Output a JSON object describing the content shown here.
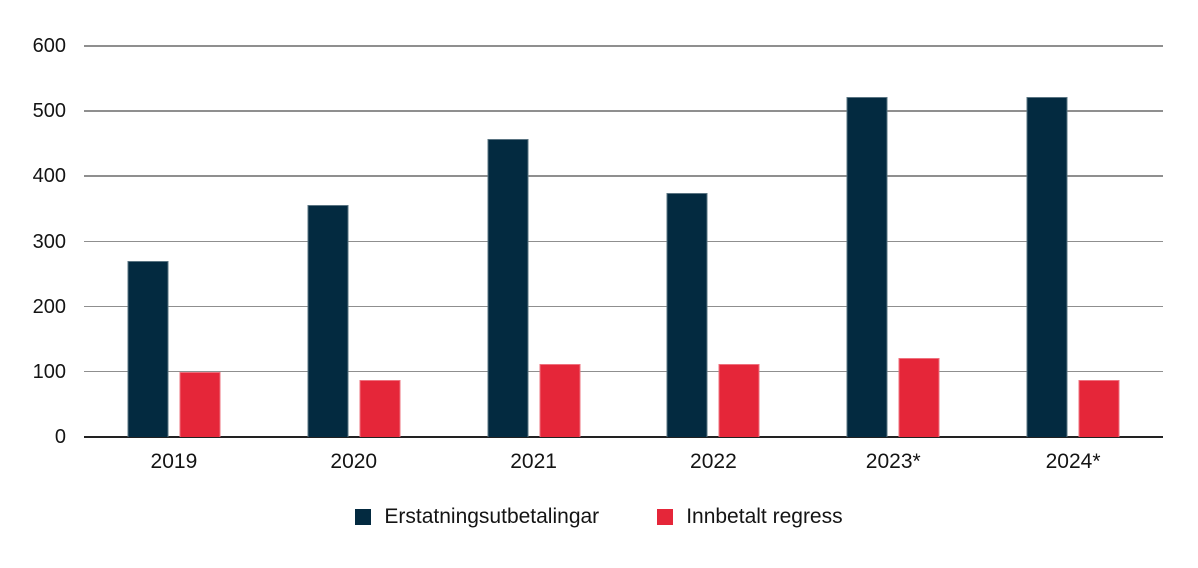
{
  "figure": {
    "background": "#ffffff",
    "text_color": "#141414",
    "gridline_color": "#8f8f8f",
    "axis_line_color": "#222222"
  },
  "chart_data": {
    "type": "bar",
    "title": "",
    "xlabel": "",
    "ylabel": "",
    "categories": [
      "2019",
      "2020",
      "2021",
      "2022",
      "2023*",
      "2024*"
    ],
    "series": [
      {
        "name": "Erstatningsutbetalingar",
        "color": "#032a40",
        "values": [
          270,
          356,
          458,
          375,
          522,
          522
        ]
      },
      {
        "name": "Innbetalt regress",
        "color": "#e52639",
        "values": [
          100,
          87,
          112,
          112,
          122,
          87
        ]
      }
    ],
    "ylim": [
      0,
      600
    ],
    "yticks": [
      0,
      100,
      200,
      300,
      400,
      500,
      600
    ],
    "grid": true,
    "legend_position": "bottom"
  }
}
